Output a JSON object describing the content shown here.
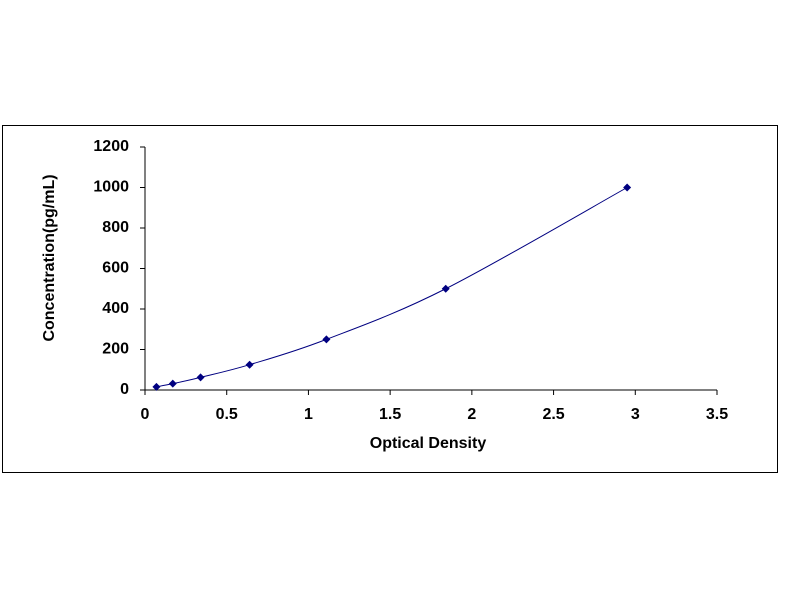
{
  "chart_data": {
    "type": "scatter",
    "x_label": "Optical Density",
    "y_label": "Concentration(pg/mL)",
    "x": [
      0.07,
      0.17,
      0.34,
      0.64,
      1.11,
      1.84,
      2.95
    ],
    "series": [
      {
        "color": "#000080",
        "values": [
          15.6,
          31.25,
          62.5,
          125,
          250,
          500,
          1000
        ]
      }
    ],
    "line": true,
    "smooth": true,
    "marker": "diamond",
    "xlim": [
      0,
      3.5
    ],
    "xticks": [
      0,
      0.5,
      1,
      1.5,
      2,
      2.5,
      3,
      3.5
    ],
    "ylim": [
      0,
      1200
    ],
    "yticks": [
      0,
      200,
      400,
      600,
      800,
      1000,
      1200
    ],
    "grid": false
  }
}
